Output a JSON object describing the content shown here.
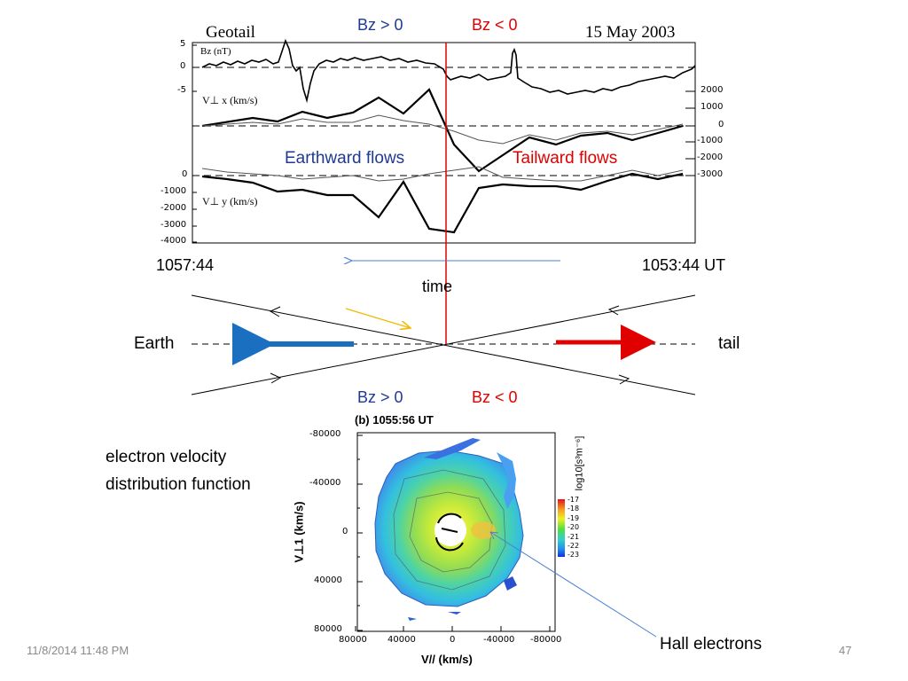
{
  "top_panel": {
    "instrument": "Geotail",
    "date": "15 May 2003",
    "bz_positive": "Bz > 0",
    "bz_negative": "Bz < 0",
    "bz_axis_label": "Bz (nT)",
    "bz_ticks": [
      "5",
      "0",
      "-5"
    ],
    "vx_label": "V⊥ x (km/s)",
    "vx_ticks": [
      "2000",
      "1000",
      "0",
      "-1000",
      "-2000",
      "-3000"
    ],
    "vy_label": "V⊥ y (km/s)",
    "vy_ticks": [
      "0",
      "-1000",
      "-2000",
      "-3000",
      "-4000"
    ],
    "earthward_flows": "Earthward flows",
    "tailward_flows": "Tailward flows",
    "time_left": "1057:44",
    "time_right": "1053:44 UT",
    "time_label": "time"
  },
  "xline_diagram": {
    "earth": "Earth",
    "tail": "tail",
    "bz_positive": "Bz > 0",
    "bz_negative": "Bz < 0"
  },
  "vdf_panel": {
    "title": "(b) 1055:56 UT",
    "y_axis_label": "V⊥1 (km/s)",
    "x_axis_label": "V// (km/s)",
    "y_ticks": [
      "-80000",
      "-40000",
      "0",
      "40000",
      "80000"
    ],
    "x_ticks": [
      "80000",
      "40000",
      "0",
      "-40000",
      "-80000"
    ],
    "colorbar_label": "log10[s³m⁻⁶]",
    "colorbar_ticks": [
      "-17",
      "-18",
      "-19",
      "-20",
      "-21",
      "-22",
      "-23"
    ]
  },
  "annotations": {
    "vdf_line1": "electron velocity",
    "vdf_line2": "distribution function",
    "hall": "Hall electrons"
  },
  "footer": {
    "date": "11/8/2014 11:48 PM",
    "page": "47"
  },
  "colors": {
    "blue_text": "#1f3a93",
    "red": "#e00000",
    "arrow_blue": "#1a6fc0",
    "arrow_orange": "#f5b800"
  }
}
